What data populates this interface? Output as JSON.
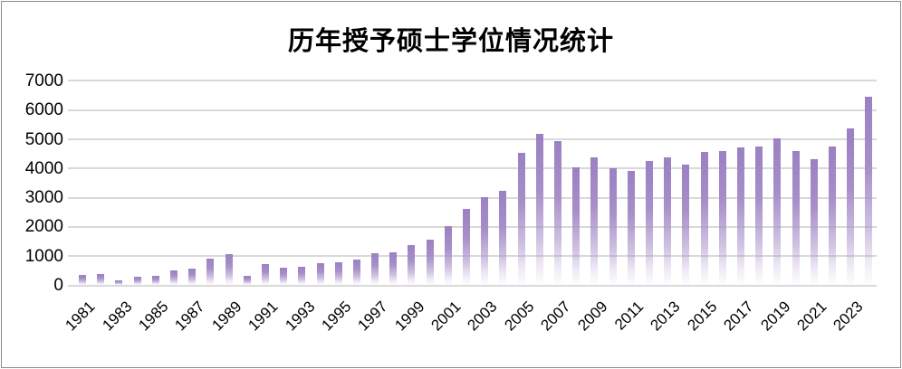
{
  "title": "历年授予硕士学位情况统计",
  "chart_data": {
    "type": "bar",
    "title": "历年授予硕士学位情况统计",
    "xlabel": "",
    "ylabel": "",
    "categories": [
      1981,
      1982,
      1983,
      1984,
      1985,
      1986,
      1987,
      1988,
      1989,
      1990,
      1991,
      1992,
      1993,
      1994,
      1995,
      1996,
      1997,
      1998,
      1999,
      2000,
      2001,
      2002,
      2003,
      2004,
      2005,
      2006,
      2007,
      2008,
      2009,
      2010,
      2011,
      2012,
      2013,
      2014,
      2015,
      2016,
      2017,
      2018,
      2019,
      2020,
      2021,
      2022,
      2023,
      2024
    ],
    "values": [
      350,
      390,
      180,
      300,
      320,
      520,
      560,
      900,
      1070,
      320,
      720,
      600,
      630,
      750,
      800,
      880,
      1110,
      1120,
      1390,
      1570,
      2040,
      2620,
      3020,
      3250,
      4540,
      5180,
      4940,
      4040,
      4390,
      4010,
      3910,
      4250,
      4390,
      4140,
      4580,
      4610,
      4710,
      4740,
      5020,
      4590,
      4320,
      4760,
      5360,
      6460
    ],
    "ylim": [
      0,
      7000
    ],
    "ytick_step": 1000,
    "yticks": [
      0,
      1000,
      2000,
      3000,
      4000,
      5000,
      6000,
      7000
    ],
    "xtick_labels": [
      "1981",
      "1983",
      "1985",
      "1987",
      "1989",
      "1991",
      "1993",
      "1995",
      "1997",
      "1999",
      "2001",
      "2003",
      "2005",
      "2007",
      "2009",
      "2011",
      "2013",
      "2015",
      "2017",
      "2019",
      "2021",
      "2023"
    ],
    "x_label_every": 2,
    "grid": true,
    "legend": false
  },
  "colors": {
    "bar": "#a78fc9",
    "bar_top": "#9b80c3",
    "grid": "#d9d9d9",
    "border": "#8c8c8c",
    "text": "#000000",
    "background": "#ffffff"
  }
}
